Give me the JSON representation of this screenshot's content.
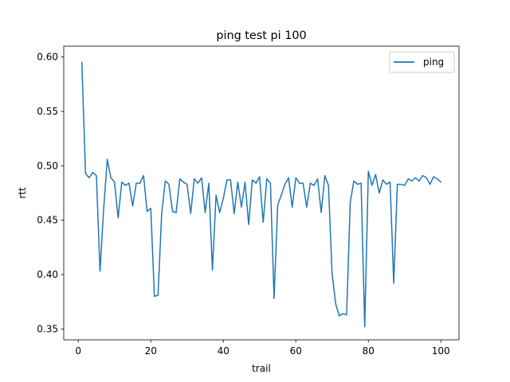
{
  "chart_data": {
    "type": "line",
    "title": "ping test pi 100",
    "xlabel": "trail",
    "ylabel": "rtt",
    "xlim": [
      -4,
      105
    ],
    "ylim": [
      0.34,
      0.61
    ],
    "x_ticks": [
      0,
      20,
      40,
      60,
      80,
      100
    ],
    "y_ticks": [
      0.35,
      0.4,
      0.45,
      0.5,
      0.55,
      0.6
    ],
    "x_tick_labels": [
      "0",
      "20",
      "40",
      "60",
      "80",
      "100"
    ],
    "y_tick_labels": [
      "0.35",
      "0.40",
      "0.45",
      "0.50",
      "0.55",
      "0.60"
    ],
    "legend": {
      "position": "upper right"
    },
    "colors": {
      "series": "#1f77b4",
      "axes": "#000000",
      "background": "#ffffff"
    },
    "series": [
      {
        "name": "ping",
        "x": [
          1,
          2,
          3,
          4,
          5,
          6,
          7,
          8,
          9,
          10,
          11,
          12,
          13,
          14,
          15,
          16,
          17,
          18,
          19,
          20,
          21,
          22,
          23,
          24,
          25,
          26,
          27,
          28,
          29,
          30,
          31,
          32,
          33,
          34,
          35,
          36,
          37,
          38,
          39,
          40,
          41,
          42,
          43,
          44,
          45,
          46,
          47,
          48,
          49,
          50,
          51,
          52,
          53,
          54,
          55,
          56,
          57,
          58,
          59,
          60,
          61,
          62,
          63,
          64,
          65,
          66,
          67,
          68,
          69,
          70,
          71,
          72,
          73,
          74,
          75,
          76,
          77,
          78,
          79,
          80,
          81,
          82,
          83,
          84,
          85,
          86,
          87,
          88,
          89,
          90,
          91,
          92,
          93,
          94,
          95,
          96,
          97,
          98,
          99,
          100
        ],
        "y": [
          0.595,
          0.493,
          0.489,
          0.494,
          0.491,
          0.403,
          0.46,
          0.506,
          0.489,
          0.485,
          0.452,
          0.485,
          0.482,
          0.484,
          0.463,
          0.484,
          0.484,
          0.491,
          0.458,
          0.461,
          0.38,
          0.381,
          0.456,
          0.486,
          0.483,
          0.458,
          0.457,
          0.488,
          0.485,
          0.483,
          0.456,
          0.488,
          0.484,
          0.489,
          0.457,
          0.484,
          0.404,
          0.473,
          0.457,
          0.47,
          0.487,
          0.487,
          0.456,
          0.485,
          0.462,
          0.485,
          0.446,
          0.487,
          0.484,
          0.49,
          0.448,
          0.488,
          0.484,
          0.378,
          0.464,
          0.473,
          0.483,
          0.489,
          0.462,
          0.489,
          0.484,
          0.484,
          0.462,
          0.484,
          0.482,
          0.488,
          0.457,
          0.491,
          0.482,
          0.401,
          0.373,
          0.362,
          0.364,
          0.363,
          0.466,
          0.486,
          0.483,
          0.484,
          0.352,
          0.495,
          0.482,
          0.492,
          0.475,
          0.487,
          0.483,
          0.485,
          0.392,
          0.483,
          0.483,
          0.482,
          0.488,
          0.486,
          0.489,
          0.486,
          0.491,
          0.489,
          0.483,
          0.49,
          0.488,
          0.485
        ]
      }
    ]
  }
}
